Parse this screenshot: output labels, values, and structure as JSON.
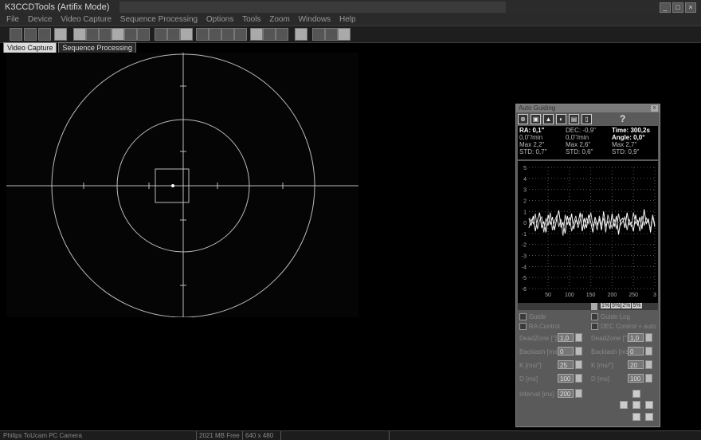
{
  "window": {
    "title": "K3CCDTools (Artifix Mode)"
  },
  "menu": [
    "File",
    "Device",
    "Video Capture",
    "Sequence Processing",
    "Options",
    "Tools",
    "Zoom",
    "Windows",
    "Help"
  ],
  "tabs": [
    {
      "label": "Video Capture",
      "active": true
    },
    {
      "label": "Sequence Processing",
      "active": false
    }
  ],
  "statusbar": {
    "device": "Philips ToUcam PC Camera",
    "memory": "2021 MB Free",
    "resolution": "640 x 480"
  },
  "guider": {
    "title": "Auto Guiding",
    "help": "?",
    "stats": {
      "ra": {
        "label": "RA:",
        "value": "0,1\"",
        "rate": "0,0\"/min",
        "max": "Max 2,2\"",
        "std": "STD: 0,7\""
      },
      "dec": {
        "label": "DEC:",
        "value": "-0,9\"",
        "rate": "0,0\"/min",
        "max": "Max 2,6\"",
        "std": "STD: 0,6\""
      },
      "time": {
        "label": "Time:",
        "value": "300,2s",
        "angle_label": "Angle:",
        "angle_value": "0,0°",
        "max": "Max 2,7\"",
        "std": "STD: 0,9\""
      }
    },
    "checks": {
      "guide": "Guide",
      "guide_log": "Guide Log",
      "ra_control": "RA Control",
      "dec_control": "DEC Control"
    },
    "dec_mode": "+ auto",
    "ra_fields": [
      {
        "label": "DeadZone [\"]",
        "value": "1,0"
      },
      {
        "label": "Backlash [ms]",
        "value": "0"
      },
      {
        "label": "K [ms/\"]",
        "value": "25"
      },
      {
        "label": "D [ms]",
        "value": "100"
      }
    ],
    "dec_fields": [
      {
        "label": "DeadZone [\"]",
        "value": "1,0"
      },
      {
        "label": "Backlash [ms]",
        "value": "0"
      },
      {
        "label": "K [ms/\"]",
        "value": "20"
      },
      {
        "label": "D [ms]",
        "value": "100"
      }
    ],
    "interval": {
      "label": "Interval [ms]",
      "value": "200"
    },
    "scroll_buttons": [
      "1%",
      "5%",
      "2%",
      "5%"
    ],
    "chart_data": {
      "type": "line",
      "y_ticks": [
        "5",
        "4",
        "3",
        "2",
        "1",
        "0",
        "-1",
        "-2",
        "-3",
        "-4",
        "-5",
        "-6"
      ],
      "x_ticks": [
        "50",
        "100",
        "150",
        "200",
        "250",
        "3"
      ],
      "ylim": [
        -6,
        5
      ],
      "series": [
        {
          "values": [
            0.4,
            -0.3,
            0.6,
            -0.8,
            0.2,
            0.9,
            -0.5,
            0.1,
            -0.9,
            0.7,
            -0.2,
            0.5,
            -0.7,
            0.3,
            1.1,
            -0.4,
            0.0,
            -1.0,
            0.6,
            -0.3,
            0.8,
            -0.6,
            0.2,
            -0.1,
            0.9,
            -0.8,
            0.4,
            -0.5,
            0.7,
            0.0,
            -0.9,
            0.5,
            -0.2,
            0.3,
            -0.7,
            1.0,
            -0.3,
            0.1,
            -0.6,
            0.8,
            -0.4,
            0.6,
            -1.1,
            0.2,
            0.4,
            -0.5,
            0.9,
            -0.2,
            0.0,
            -0.8,
            0.7,
            -0.3,
            0.5,
            -0.6,
            1.2,
            -0.1,
            0.3,
            -0.9,
            0.6,
            -0.4
          ]
        },
        {
          "values": [
            -0.5,
            0.3,
            -0.1,
            0.8,
            -0.6,
            0.2,
            0.5,
            -0.9,
            0.4,
            -0.3,
            0.9,
            -0.7,
            0.1,
            0.6,
            -0.4,
            0.3,
            -1.2,
            0.7,
            -0.2,
            0.5,
            -0.8,
            0.0,
            0.6,
            -0.5,
            0.2,
            0.8,
            -0.6,
            0.4,
            -0.1,
            0.9,
            -0.3,
            0.1,
            -0.7,
            0.6,
            -0.2,
            0.4,
            -0.9,
            0.7,
            0.0,
            -0.5,
            0.3,
            -0.6,
            0.8,
            -0.2,
            0.1,
            0.5,
            -0.7,
            0.3,
            -0.4,
            0.9,
            -0.1,
            0.2,
            -0.8,
            0.6,
            -0.3,
            0.4,
            0.0,
            -0.6,
            0.7,
            -0.2
          ]
        }
      ]
    }
  }
}
